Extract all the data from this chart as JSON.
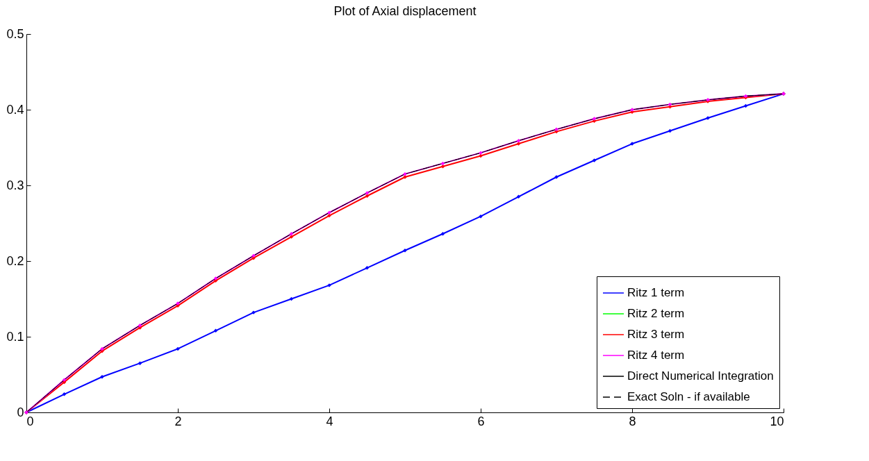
{
  "chart_data": {
    "type": "line",
    "title": "Plot of Axial displacement",
    "x": [
      0,
      0.5,
      1,
      1.5,
      2,
      2.5,
      3,
      3.5,
      4,
      4.5,
      5,
      5.5,
      6,
      6.5,
      7,
      7.5,
      8,
      8.5,
      9,
      9.5,
      10
    ],
    "series": [
      {
        "name": "Ritz 1 term",
        "color": "#0000ff",
        "marker": "diamond",
        "line_style": "solid",
        "values": [
          0,
          0.024,
          0.047,
          0.065,
          0.084,
          0.108,
          0.132,
          0.15,
          0.168,
          0.191,
          0.214,
          0.236,
          0.259,
          0.285,
          0.311,
          0.333,
          0.355,
          0.372,
          0.389,
          0.405,
          0.421
        ]
      },
      {
        "name": "Ritz 2 term",
        "color": "#00ff00",
        "line_style": "solid",
        "values": [
          null,
          null,
          null,
          null,
          null,
          null,
          null,
          null,
          null,
          null,
          null,
          null,
          null,
          null,
          null,
          null,
          null,
          null,
          null,
          null,
          null
        ]
      },
      {
        "name": "Ritz 3 term",
        "color": "#ff0000",
        "marker": "diamond",
        "line_style": "solid",
        "values": [
          0,
          0.04,
          0.081,
          0.112,
          0.141,
          0.174,
          0.204,
          0.232,
          0.26,
          0.286,
          0.311,
          0.325,
          0.339,
          0.355,
          0.371,
          0.385,
          0.397,
          0.404,
          0.411,
          0.416,
          0.421
        ]
      },
      {
        "name": "Ritz 4 term",
        "color": "#ff00ff",
        "marker": "diamond",
        "line_style": "solid",
        "values": [
          0,
          0.043,
          0.084,
          0.115,
          0.144,
          0.177,
          0.207,
          0.236,
          0.264,
          0.29,
          0.315,
          0.329,
          0.343,
          0.359,
          0.374,
          0.388,
          0.4,
          0.407,
          0.413,
          0.418,
          0.421
        ]
      },
      {
        "name": "Direct Numerical Integration",
        "color": "#000000",
        "marker": "none",
        "line_style": "solid",
        "values": [
          0,
          0.043,
          0.084,
          0.115,
          0.144,
          0.177,
          0.207,
          0.236,
          0.264,
          0.29,
          0.315,
          0.329,
          0.343,
          0.359,
          0.374,
          0.388,
          0.4,
          0.407,
          0.413,
          0.418,
          0.421
        ]
      },
      {
        "name": "Exact Soln - if available",
        "color": "#000000",
        "marker": "none",
        "line_style": "dashed",
        "values": [
          0,
          0.043,
          0.084,
          0.115,
          0.144,
          0.177,
          0.207,
          0.236,
          0.264,
          0.29,
          0.315,
          0.329,
          0.343,
          0.359,
          0.374,
          0.388,
          0.4,
          0.407,
          0.413,
          0.418,
          0.421
        ]
      }
    ],
    "xlim": [
      0,
      10
    ],
    "xticks": [
      0,
      2,
      4,
      6,
      8,
      10
    ],
    "ylim": [
      0,
      0.5
    ],
    "yticks": [
      0,
      0.1,
      0.2,
      0.3,
      0.4,
      0.5
    ],
    "grid": false,
    "legend": "bottom right"
  }
}
